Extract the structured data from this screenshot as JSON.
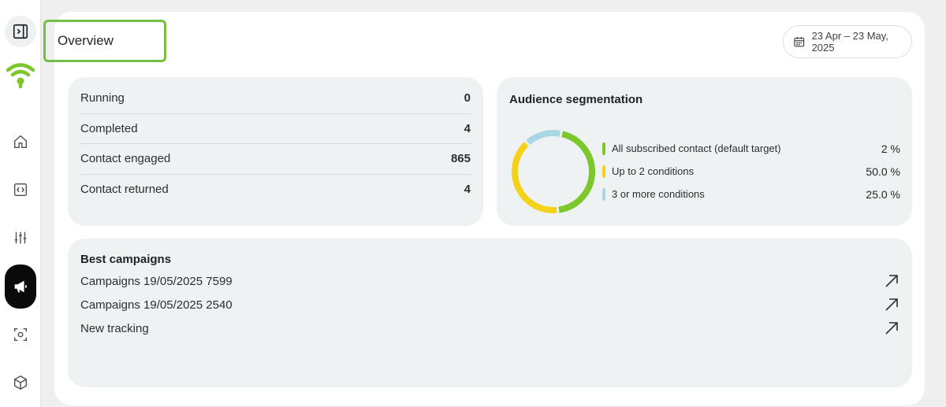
{
  "page": {
    "title": "Overview"
  },
  "date_range": {
    "label": "23 Apr – 23 May, 2025"
  },
  "sidebar": {
    "items": [
      {
        "icon": "panel-toggle-icon"
      },
      {
        "icon": "wifi-logo-icon"
      },
      {
        "icon": "home-icon"
      },
      {
        "icon": "code-icon"
      },
      {
        "icon": "sliders-icon"
      },
      {
        "icon": "megaphone-icon",
        "active": true
      },
      {
        "icon": "scan-icon"
      },
      {
        "icon": "cube-icon"
      }
    ]
  },
  "stats": [
    {
      "label": "Running",
      "value": "0"
    },
    {
      "label": "Completed",
      "value": "4"
    },
    {
      "label": "Contact engaged",
      "value": "865"
    },
    {
      "label": "Contact returned",
      "value": "4"
    }
  ],
  "audience": {
    "title": "Audience segmentation",
    "segments": [
      {
        "label": "All subscribed contact (default target)",
        "value": "2 %",
        "color": "#7cc72b",
        "share": 0.45
      },
      {
        "label": "Up to 2 conditions",
        "value": "50.0 %",
        "color": "#f5d21a",
        "share": 0.4
      },
      {
        "label": "3 or more conditions",
        "value": "25.0 %",
        "color": "#a9d6e5",
        "share": 0.15
      }
    ]
  },
  "best_campaigns": {
    "title": "Best campaigns",
    "items": [
      {
        "name": "Campaigns 19/05/2025 7599"
      },
      {
        "name": "Campaigns 19/05/2025 2540"
      },
      {
        "name": "New tracking"
      }
    ]
  },
  "colors": {
    "accent": "#74bf44",
    "brand": "#7cc72b"
  }
}
